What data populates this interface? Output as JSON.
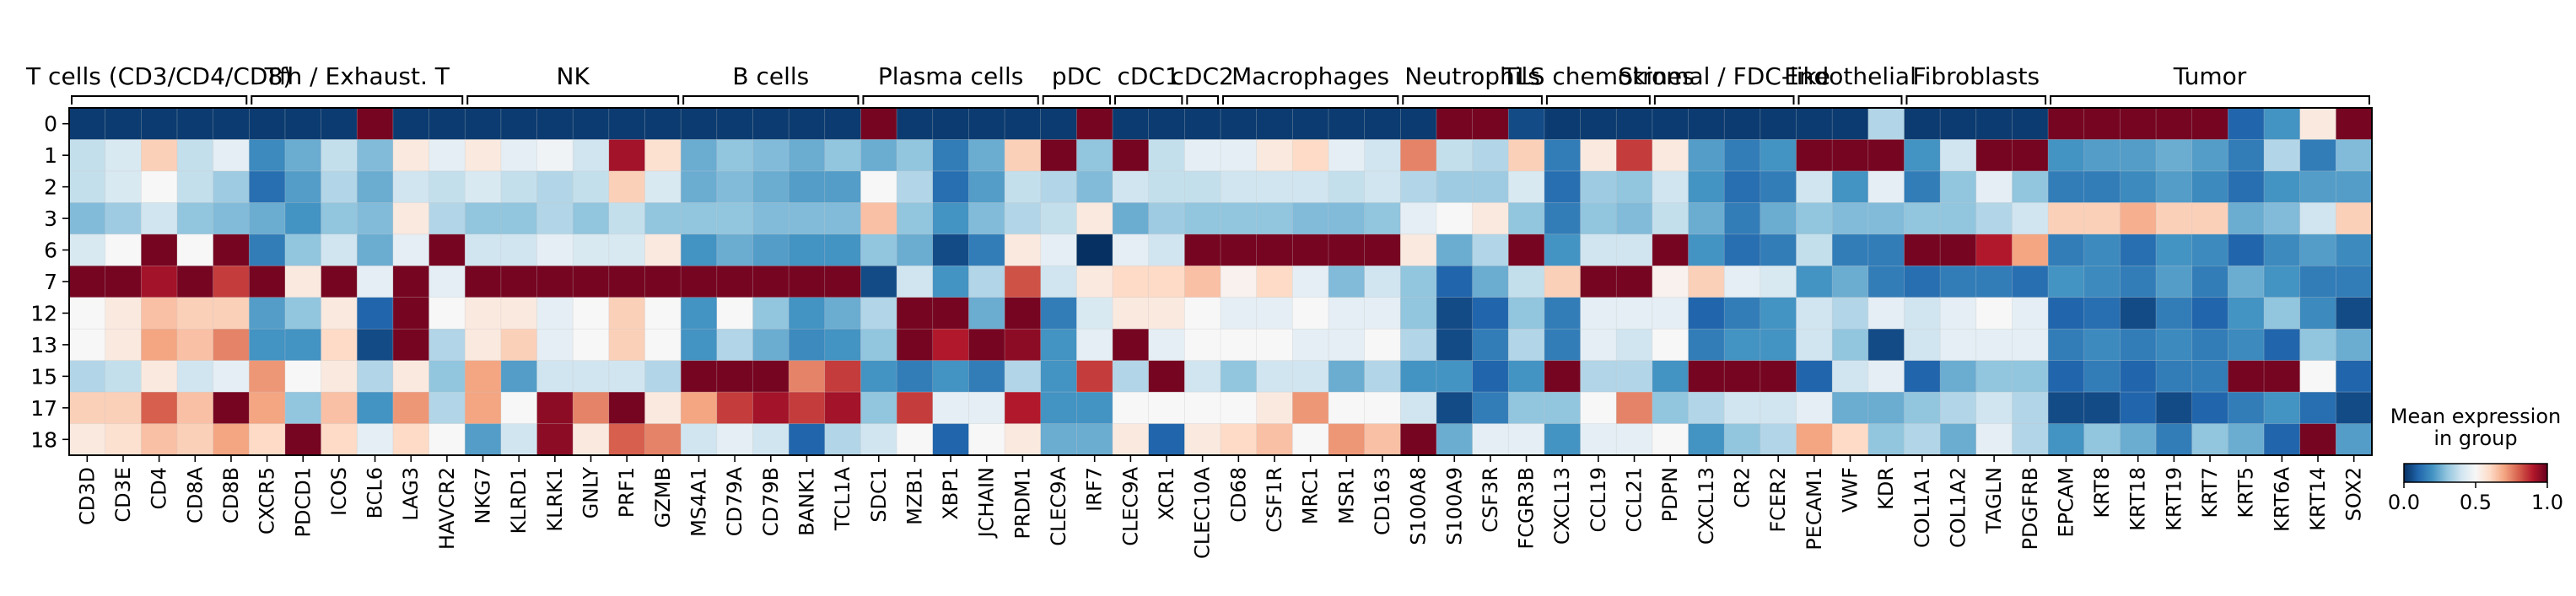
{
  "chart_data": {
    "type": "heatmap",
    "title": "",
    "xlabel": "",
    "ylabel": "",
    "rows": [
      "0",
      "1",
      "2",
      "3",
      "6",
      "7",
      "12",
      "13",
      "15",
      "17",
      "18"
    ],
    "genes": [
      "CD3D",
      "CD3E",
      "CD4",
      "CD8A",
      "CD8B",
      "CXCR5",
      "PDCD1",
      "ICOS",
      "BCL6",
      "LAG3",
      "HAVCR2",
      "NKG7",
      "KLRD1",
      "KLRK1",
      "GNLY",
      "PRF1",
      "GZMB",
      "MS4A1",
      "CD79A",
      "CD79B",
      "BANK1",
      "TCL1A",
      "SDC1",
      "MZB1",
      "XBP1",
      "JCHAIN",
      "PRDM1",
      "CLEC9A",
      "IRF7",
      "CLEC9A",
      "XCR1",
      "CLEC10A",
      "CD68",
      "CSF1R",
      "MRC1",
      "MSR1",
      "CD163",
      "S100A8",
      "S100A9",
      "CSF3R",
      "FCGR3B",
      "CXCL13",
      "CCL19",
      "CCL21",
      "PDPN",
      "CXCL13",
      "CR2",
      "FCER2",
      "PECAM1",
      "VWF",
      "KDR",
      "COL1A1",
      "COL1A2",
      "TAGLN",
      "PDGFRB",
      "EPCAM",
      "KRT8",
      "KRT18",
      "KRT19",
      "KRT7",
      "KRT5",
      "KRT6A",
      "KRT14",
      "SOX2"
    ],
    "groups": [
      {
        "label": "T cells (CD3/CD4/CD8)",
        "start": 0,
        "end": 4
      },
      {
        "label": "Tfh / Exhaust. T",
        "start": 5,
        "end": 10
      },
      {
        "label": "NK",
        "start": 11,
        "end": 16
      },
      {
        "label": "B cells",
        "start": 17,
        "end": 21
      },
      {
        "label": "Plasma cells",
        "start": 22,
        "end": 26
      },
      {
        "label": "pDC",
        "start": 27,
        "end": 28
      },
      {
        "label": "cDC1",
        "start": 29,
        "end": 30
      },
      {
        "label": "cDC2",
        "start": 31,
        "end": 31
      },
      {
        "label": "Macrophages",
        "start": 32,
        "end": 36
      },
      {
        "label": "Neutrophils",
        "start": 37,
        "end": 40
      },
      {
        "label": "TLS chemokines",
        "start": 41,
        "end": 43
      },
      {
        "label": "Stromal / FDC-like",
        "start": 44,
        "end": 47
      },
      {
        "label": "Endothelial",
        "start": 48,
        "end": 50
      },
      {
        "label": "Fibroblasts",
        "start": 51,
        "end": 54
      },
      {
        "label": "Tumor",
        "start": 55,
        "end": 63
      }
    ],
    "values": [
      [
        0.02,
        0.02,
        0.02,
        0.02,
        0.02,
        0.02,
        0.02,
        0.02,
        0.98,
        0.02,
        0.02,
        0.02,
        0.02,
        0.02,
        0.02,
        0.02,
        0.02,
        0.02,
        0.02,
        0.02,
        0.02,
        0.02,
        0.98,
        0.02,
        0.02,
        0.02,
        0.02,
        0.02,
        0.98,
        0.02,
        0.02,
        0.02,
        0.02,
        0.02,
        0.02,
        0.02,
        0.02,
        0.02,
        0.98,
        0.98,
        0.05,
        0.02,
        0.02,
        0.02,
        0.02,
        0.02,
        0.02,
        0.02,
        0.02,
        0.02,
        0.35,
        0.02,
        0.02,
        0.02,
        0.02,
        0.98,
        0.98,
        0.98,
        0.98,
        0.98,
        0.1,
        0.2,
        0.55,
        0.98
      ],
      [
        0.38,
        0.42,
        0.62,
        0.38,
        0.45,
        0.18,
        0.25,
        0.38,
        0.28,
        0.55,
        0.45,
        0.55,
        0.45,
        0.48,
        0.4,
        0.92,
        0.58,
        0.25,
        0.3,
        0.28,
        0.25,
        0.3,
        0.25,
        0.3,
        0.15,
        0.25,
        0.62,
        0.98,
        0.3,
        0.98,
        0.38,
        0.45,
        0.45,
        0.55,
        0.6,
        0.45,
        0.4,
        0.75,
        0.38,
        0.35,
        0.62,
        0.15,
        0.55,
        0.85,
        0.55,
        0.22,
        0.15,
        0.2,
        0.98,
        0.98,
        0.98,
        0.2,
        0.4,
        0.98,
        0.98,
        0.2,
        0.22,
        0.22,
        0.25,
        0.22,
        0.15,
        0.35,
        0.15,
        0.28
      ],
      [
        0.38,
        0.42,
        0.5,
        0.38,
        0.32,
        0.12,
        0.22,
        0.35,
        0.25,
        0.4,
        0.38,
        0.42,
        0.38,
        0.35,
        0.38,
        0.62,
        0.42,
        0.25,
        0.28,
        0.25,
        0.22,
        0.22,
        0.5,
        0.35,
        0.12,
        0.22,
        0.38,
        0.35,
        0.28,
        0.4,
        0.38,
        0.38,
        0.4,
        0.4,
        0.4,
        0.38,
        0.4,
        0.35,
        0.32,
        0.32,
        0.42,
        0.12,
        0.32,
        0.3,
        0.4,
        0.2,
        0.12,
        0.15,
        0.4,
        0.2,
        0.45,
        0.15,
        0.3,
        0.45,
        0.3,
        0.15,
        0.15,
        0.18,
        0.22,
        0.18,
        0.12,
        0.2,
        0.22,
        0.22
      ],
      [
        0.28,
        0.32,
        0.4,
        0.3,
        0.28,
        0.25,
        0.2,
        0.3,
        0.28,
        0.55,
        0.35,
        0.3,
        0.3,
        0.35,
        0.3,
        0.38,
        0.3,
        0.3,
        0.3,
        0.28,
        0.28,
        0.28,
        0.65,
        0.3,
        0.2,
        0.28,
        0.35,
        0.38,
        0.55,
        0.25,
        0.32,
        0.3,
        0.3,
        0.3,
        0.28,
        0.28,
        0.3,
        0.45,
        0.5,
        0.55,
        0.3,
        0.15,
        0.3,
        0.28,
        0.38,
        0.25,
        0.15,
        0.25,
        0.3,
        0.28,
        0.28,
        0.3,
        0.3,
        0.35,
        0.4,
        0.62,
        0.62,
        0.68,
        0.62,
        0.62,
        0.25,
        0.28,
        0.4,
        0.62
      ],
      [
        0.42,
        0.5,
        0.98,
        0.5,
        0.98,
        0.15,
        0.3,
        0.4,
        0.25,
        0.45,
        0.98,
        0.4,
        0.4,
        0.45,
        0.42,
        0.42,
        0.55,
        0.2,
        0.25,
        0.22,
        0.2,
        0.2,
        0.3,
        0.25,
        0.05,
        0.15,
        0.55,
        0.45,
        0.0,
        0.45,
        0.4,
        0.98,
        0.98,
        0.98,
        0.98,
        0.98,
        0.98,
        0.55,
        0.25,
        0.35,
        0.98,
        0.2,
        0.4,
        0.4,
        0.98,
        0.2,
        0.12,
        0.15,
        0.38,
        0.15,
        0.15,
        0.98,
        0.98,
        0.9,
        0.7,
        0.15,
        0.18,
        0.12,
        0.2,
        0.18,
        0.1,
        0.18,
        0.22,
        0.18
      ],
      [
        0.98,
        0.98,
        0.92,
        0.98,
        0.85,
        0.98,
        0.55,
        0.98,
        0.45,
        0.98,
        0.45,
        0.98,
        0.98,
        0.98,
        0.98,
        0.98,
        0.98,
        0.98,
        0.98,
        0.98,
        0.98,
        0.98,
        0.05,
        0.4,
        0.2,
        0.35,
        0.82,
        0.4,
        0.55,
        0.6,
        0.6,
        0.65,
        0.52,
        0.6,
        0.45,
        0.28,
        0.4,
        0.3,
        0.1,
        0.25,
        0.38,
        0.62,
        0.98,
        0.98,
        0.52,
        0.62,
        0.45,
        0.42,
        0.2,
        0.25,
        0.15,
        0.12,
        0.15,
        0.15,
        0.12,
        0.2,
        0.18,
        0.15,
        0.22,
        0.15,
        0.25,
        0.2,
        0.15,
        0.15
      ],
      [
        0.5,
        0.55,
        0.65,
        0.62,
        0.62,
        0.22,
        0.3,
        0.55,
        0.1,
        0.98,
        0.5,
        0.55,
        0.55,
        0.45,
        0.5,
        0.62,
        0.5,
        0.2,
        0.5,
        0.3,
        0.2,
        0.25,
        0.35,
        0.98,
        0.98,
        0.25,
        0.98,
        0.15,
        0.42,
        0.55,
        0.55,
        0.5,
        0.45,
        0.45,
        0.5,
        0.45,
        0.45,
        0.3,
        0.05,
        0.1,
        0.3,
        0.15,
        0.45,
        0.45,
        0.45,
        0.1,
        0.15,
        0.2,
        0.4,
        0.35,
        0.45,
        0.4,
        0.45,
        0.5,
        0.45,
        0.1,
        0.12,
        0.05,
        0.15,
        0.1,
        0.2,
        0.3,
        0.18,
        0.05
      ],
      [
        0.5,
        0.55,
        0.7,
        0.65,
        0.75,
        0.2,
        0.2,
        0.6,
        0.05,
        0.98,
        0.35,
        0.55,
        0.62,
        0.45,
        0.5,
        0.62,
        0.5,
        0.2,
        0.35,
        0.25,
        0.18,
        0.2,
        0.3,
        0.98,
        0.9,
        0.98,
        0.95,
        0.2,
        0.45,
        0.98,
        0.45,
        0.5,
        0.5,
        0.5,
        0.45,
        0.45,
        0.5,
        0.35,
        0.05,
        0.15,
        0.35,
        0.15,
        0.45,
        0.4,
        0.5,
        0.15,
        0.2,
        0.2,
        0.4,
        0.3,
        0.05,
        0.4,
        0.45,
        0.45,
        0.45,
        0.15,
        0.18,
        0.15,
        0.18,
        0.15,
        0.18,
        0.1,
        0.3,
        0.25
      ],
      [
        0.35,
        0.38,
        0.55,
        0.4,
        0.45,
        0.72,
        0.5,
        0.55,
        0.35,
        0.55,
        0.3,
        0.7,
        0.22,
        0.4,
        0.4,
        0.4,
        0.35,
        0.98,
        0.98,
        0.98,
        0.75,
        0.85,
        0.2,
        0.15,
        0.2,
        0.15,
        0.35,
        0.2,
        0.85,
        0.35,
        0.98,
        0.4,
        0.3,
        0.4,
        0.4,
        0.25,
        0.35,
        0.2,
        0.2,
        0.1,
        0.2,
        0.98,
        0.35,
        0.35,
        0.2,
        0.98,
        0.98,
        0.98,
        0.1,
        0.4,
        0.45,
        0.1,
        0.25,
        0.3,
        0.3,
        0.1,
        0.15,
        0.1,
        0.15,
        0.15,
        0.98,
        0.98,
        0.5,
        0.1
      ],
      [
        0.62,
        0.62,
        0.8,
        0.65,
        0.98,
        0.7,
        0.3,
        0.65,
        0.2,
        0.72,
        0.35,
        0.7,
        0.5,
        0.95,
        0.75,
        0.98,
        0.55,
        0.7,
        0.85,
        0.92,
        0.85,
        0.92,
        0.3,
        0.85,
        0.45,
        0.45,
        0.9,
        0.2,
        0.2,
        0.5,
        0.5,
        0.5,
        0.5,
        0.55,
        0.72,
        0.5,
        0.5,
        0.4,
        0.05,
        0.15,
        0.3,
        0.3,
        0.5,
        0.75,
        0.3,
        0.35,
        0.4,
        0.4,
        0.45,
        0.25,
        0.25,
        0.3,
        0.35,
        0.4,
        0.35,
        0.05,
        0.05,
        0.1,
        0.05,
        0.1,
        0.15,
        0.2,
        0.12,
        0.05
      ],
      [
        0.55,
        0.58,
        0.65,
        0.62,
        0.7,
        0.6,
        0.98,
        0.6,
        0.45,
        0.6,
        0.5,
        0.22,
        0.4,
        0.95,
        0.55,
        0.8,
        0.75,
        0.4,
        0.45,
        0.4,
        0.1,
        0.35,
        0.4,
        0.5,
        0.1,
        0.5,
        0.55,
        0.25,
        0.25,
        0.55,
        0.1,
        0.55,
        0.6,
        0.65,
        0.5,
        0.72,
        0.65,
        0.98,
        0.25,
        0.45,
        0.45,
        0.2,
        0.45,
        0.45,
        0.5,
        0.2,
        0.3,
        0.35,
        0.7,
        0.6,
        0.3,
        0.35,
        0.25,
        0.45,
        0.35,
        0.2,
        0.3,
        0.25,
        0.15,
        0.3,
        0.25,
        0.1,
        0.98,
        0.22
      ]
    ],
    "colorbar": {
      "title": "Mean expression\nin group",
      "ticks": [
        "0.0",
        "0.5",
        "1.0"
      ],
      "range": [
        0,
        1
      ]
    },
    "colormap": [
      "#053061",
      "#2166ac",
      "#4393c3",
      "#92c5de",
      "#d1e5f0",
      "#f7f7f7",
      "#fddbc7",
      "#f4a582",
      "#d6604d",
      "#b2182b",
      "#67001f"
    ]
  }
}
